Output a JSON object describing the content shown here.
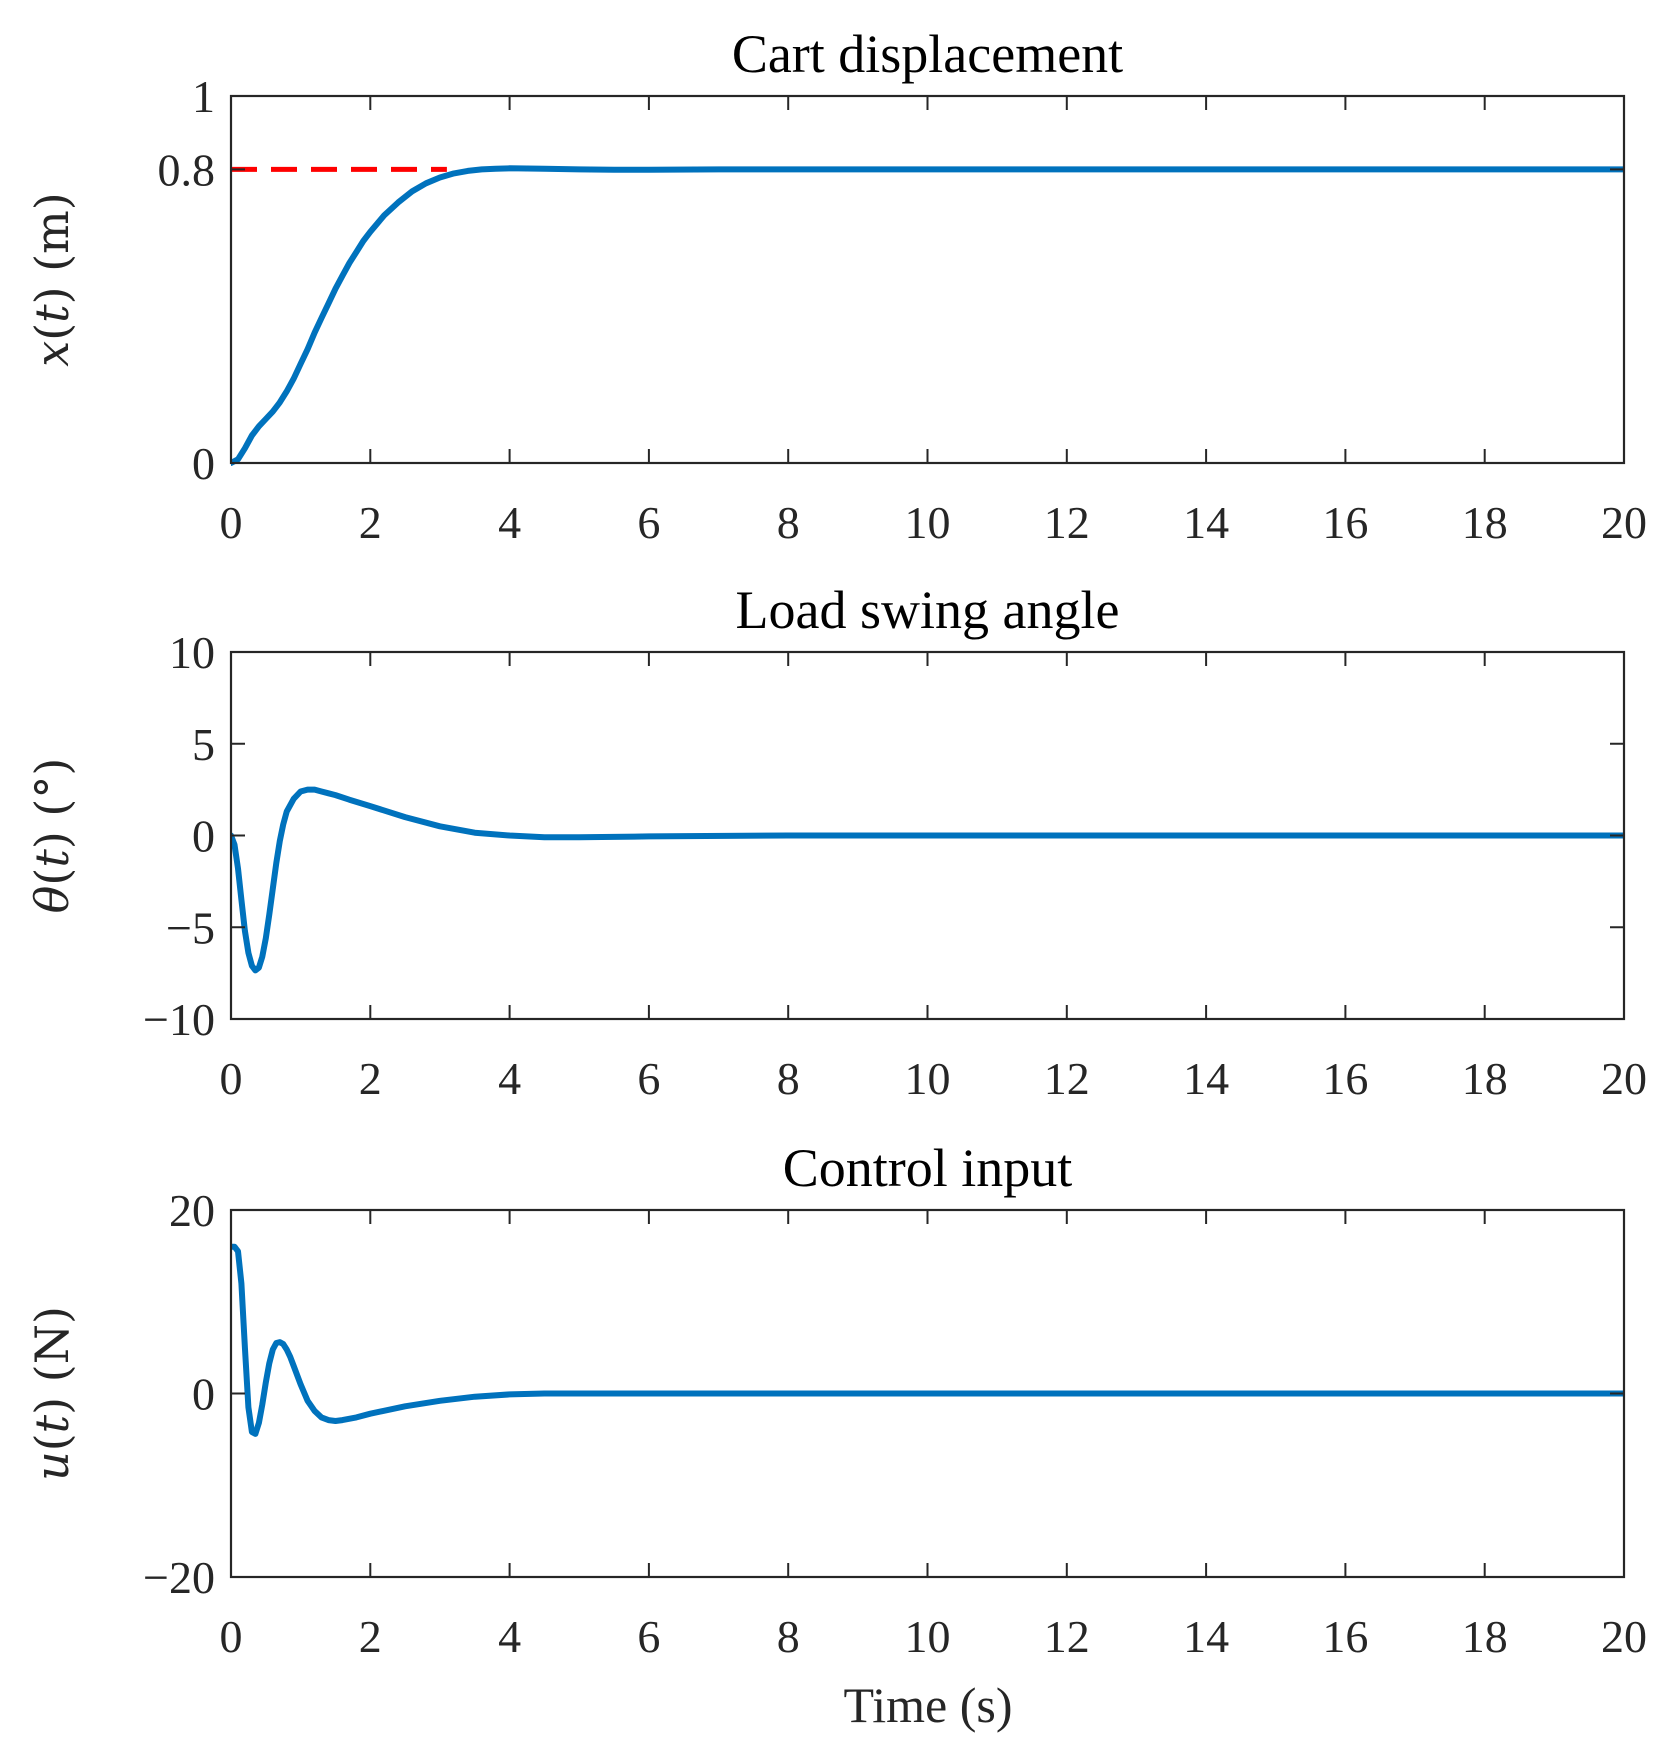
{
  "figure": {
    "xlabel": "Time (s)"
  },
  "chart_data": [
    {
      "type": "line",
      "title": "Cart displacement",
      "ylabel_parts": [
        {
          "text": "x",
          "italic": true
        },
        {
          "text": "(",
          "italic": false
        },
        {
          "text": "t",
          "italic": true
        },
        {
          "text": ") (m)",
          "italic": false
        }
      ],
      "xlim": [
        0,
        20
      ],
      "ylim": [
        0,
        1
      ],
      "xticks": [
        0,
        2,
        4,
        6,
        8,
        10,
        12,
        14,
        16,
        18,
        20
      ],
      "xtick_labels": [
        "0",
        "2",
        "4",
        "6",
        "8",
        "10",
        "12",
        "14",
        "16",
        "18",
        "20"
      ],
      "yticks": [
        0,
        0.8,
        1
      ],
      "ytick_labels": [
        "0",
        "0.8",
        "1"
      ],
      "series": [
        {
          "name": "reference",
          "color": "#ff0000",
          "dash": true,
          "x": [
            0,
            3.1
          ],
          "y": [
            0.8,
            0.8
          ]
        },
        {
          "name": "x(t)",
          "color": "#0072bd",
          "dash": false,
          "x": [
            0,
            0.1,
            0.2,
            0.3,
            0.4,
            0.5,
            0.6,
            0.7,
            0.8,
            0.9,
            1.0,
            1.1,
            1.2,
            1.3,
            1.4,
            1.5,
            1.6,
            1.7,
            1.8,
            1.9,
            2.0,
            2.2,
            2.4,
            2.6,
            2.8,
            3.0,
            3.2,
            3.4,
            3.6,
            3.8,
            4.0,
            4.5,
            5.0,
            5.5,
            6.0,
            7.0,
            8.0,
            10.0,
            12.0,
            14.0,
            16.0,
            18.0,
            20.0
          ],
          "y": [
            0,
            0.01,
            0.04,
            0.075,
            0.1,
            0.12,
            0.14,
            0.165,
            0.195,
            0.23,
            0.27,
            0.31,
            0.355,
            0.395,
            0.435,
            0.475,
            0.51,
            0.545,
            0.575,
            0.605,
            0.63,
            0.675,
            0.71,
            0.74,
            0.762,
            0.778,
            0.789,
            0.796,
            0.8,
            0.802,
            0.803,
            0.802,
            0.8,
            0.799,
            0.799,
            0.8,
            0.8,
            0.8,
            0.8,
            0.8,
            0.8,
            0.8,
            0.8
          ]
        }
      ]
    },
    {
      "type": "line",
      "title": "Load swing angle",
      "ylabel_parts": [
        {
          "text": "θ",
          "italic": true
        },
        {
          "text": "(",
          "italic": false
        },
        {
          "text": "t",
          "italic": true
        },
        {
          "text": ") (°)",
          "italic": false
        }
      ],
      "xlim": [
        0,
        20
      ],
      "ylim": [
        -10,
        10
      ],
      "xticks": [
        0,
        2,
        4,
        6,
        8,
        10,
        12,
        14,
        16,
        18,
        20
      ],
      "xtick_labels": [
        "0",
        "2",
        "4",
        "6",
        "8",
        "10",
        "12",
        "14",
        "16",
        "18",
        "20"
      ],
      "yticks": [
        -10,
        -5,
        0,
        5,
        10
      ],
      "ytick_labels": [
        "−10",
        "−5",
        "0",
        "5",
        "10"
      ],
      "series": [
        {
          "name": "θ(t)",
          "color": "#0072bd",
          "dash": false,
          "x": [
            0,
            0.05,
            0.1,
            0.15,
            0.2,
            0.25,
            0.3,
            0.35,
            0.4,
            0.45,
            0.5,
            0.55,
            0.6,
            0.65,
            0.7,
            0.75,
            0.8,
            0.9,
            1.0,
            1.1,
            1.2,
            1.3,
            1.4,
            1.5,
            1.7,
            2.0,
            2.5,
            3.0,
            3.5,
            4.0,
            4.5,
            5.0,
            6.0,
            8.0,
            10.0,
            12.0,
            14.0,
            16.0,
            18.0,
            20.0
          ],
          "y": [
            0,
            -0.5,
            -1.8,
            -3.5,
            -5.2,
            -6.4,
            -7.1,
            -7.35,
            -7.2,
            -6.6,
            -5.6,
            -4.3,
            -2.9,
            -1.5,
            -0.3,
            0.6,
            1.3,
            2.0,
            2.4,
            2.5,
            2.5,
            2.4,
            2.3,
            2.2,
            1.95,
            1.6,
            1.0,
            0.5,
            0.15,
            0.0,
            -0.1,
            -0.1,
            -0.05,
            0,
            0,
            0,
            0,
            0,
            0,
            0
          ]
        }
      ]
    },
    {
      "type": "line",
      "title": "Control input",
      "ylabel_parts": [
        {
          "text": "u",
          "italic": true
        },
        {
          "text": "(",
          "italic": false
        },
        {
          "text": "t",
          "italic": true
        },
        {
          "text": ") (N)",
          "italic": false
        }
      ],
      "xlim": [
        0,
        20
      ],
      "ylim": [
        -20,
        20
      ],
      "xticks": [
        0,
        2,
        4,
        6,
        8,
        10,
        12,
        14,
        16,
        18,
        20
      ],
      "xtick_labels": [
        "0",
        "2",
        "4",
        "6",
        "8",
        "10",
        "12",
        "14",
        "16",
        "18",
        "20"
      ],
      "yticks": [
        -20,
        0,
        20
      ],
      "ytick_labels": [
        "−20",
        "0",
        "20"
      ],
      "series": [
        {
          "name": "u(t)",
          "color": "#0072bd",
          "dash": false,
          "x": [
            0,
            0.05,
            0.1,
            0.15,
            0.2,
            0.25,
            0.3,
            0.35,
            0.4,
            0.45,
            0.5,
            0.55,
            0.6,
            0.65,
            0.7,
            0.75,
            0.8,
            0.85,
            0.9,
            1.0,
            1.1,
            1.2,
            1.3,
            1.4,
            1.5,
            1.6,
            1.8,
            2.0,
            2.5,
            3.0,
            3.5,
            4.0,
            4.5,
            5.0,
            6.0,
            8.0,
            10.0,
            12.0,
            14.0,
            16.0,
            18.0,
            20.0
          ],
          "y": [
            16,
            16,
            15.5,
            12,
            5,
            -1.5,
            -4.2,
            -4.4,
            -3.2,
            -1.2,
            1.2,
            3.3,
            4.8,
            5.5,
            5.6,
            5.4,
            4.8,
            4.0,
            3.0,
            1.0,
            -0.8,
            -1.9,
            -2.6,
            -2.9,
            -3.0,
            -2.9,
            -2.6,
            -2.2,
            -1.4,
            -0.8,
            -0.35,
            -0.1,
            0,
            0,
            0,
            0,
            0,
            0,
            0,
            0,
            0,
            0
          ]
        }
      ]
    }
  ]
}
